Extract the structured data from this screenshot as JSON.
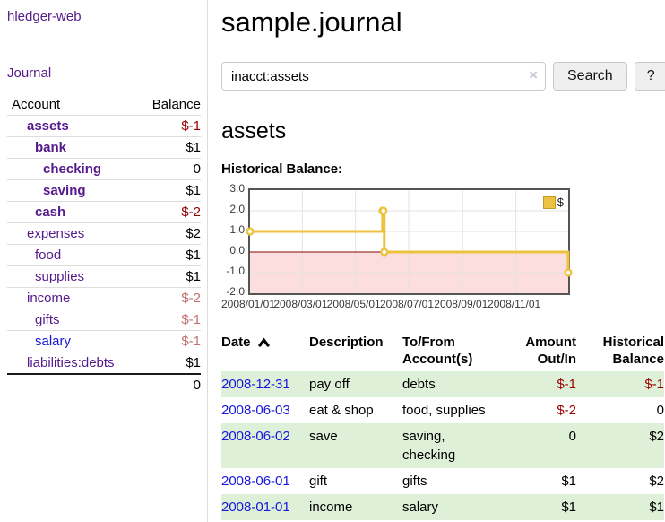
{
  "colors": {
    "purple_link": "#551a8b",
    "blue_link": "#1717dd",
    "negative_strong": "#990000",
    "negative_soft": "#c17373",
    "row_stripe": "#dff0d8",
    "chart_line": "#edc240",
    "chart_negative_fill": "#fcdede",
    "chart_zero_line": "#8b0000",
    "chart_border": "#545454",
    "grid_line": "#e3e3e3"
  },
  "sidebar": {
    "brand": "hledger-web",
    "journal_link": "Journal",
    "accounts_table": {
      "headers": {
        "account": "Account",
        "balance": "Balance"
      },
      "rows": [
        {
          "name": "assets",
          "level": 1,
          "bold": true,
          "balance": "$-1",
          "neg": "strong"
        },
        {
          "name": "bank",
          "level": 2,
          "bold": true,
          "balance": "$1"
        },
        {
          "name": "checking",
          "level": 3,
          "bold": true,
          "balance": "0"
        },
        {
          "name": "saving",
          "level": 3,
          "bold": true,
          "balance": "$1"
        },
        {
          "name": "cash",
          "level": 2,
          "bold": true,
          "balance": "$-2",
          "neg": "strong"
        },
        {
          "name": "expenses",
          "level": 1,
          "bold": false,
          "balance": "$2"
        },
        {
          "name": "food",
          "level": 2,
          "bold": false,
          "balance": "$1"
        },
        {
          "name": "supplies",
          "level": 2,
          "bold": false,
          "balance": "$1"
        },
        {
          "name": "income",
          "level": 1,
          "bold": false,
          "balance": "$-2",
          "neg": "soft"
        },
        {
          "name": "gifts",
          "level": 2,
          "bold": false,
          "balance": "$-1",
          "neg": "soft"
        },
        {
          "name": "salary",
          "level": 2,
          "bold": false,
          "balance": "$-1",
          "neg": "soft",
          "unvisited": true
        },
        {
          "name": "liabilities:debts",
          "level": 1,
          "bold": false,
          "balance": "$1"
        }
      ],
      "total": "0"
    }
  },
  "header": {
    "title": "sample.journal"
  },
  "search": {
    "value": "inacct:assets",
    "clear_icon": "×",
    "button_label": "Search",
    "help_label": "?"
  },
  "account_page": {
    "title": "assets",
    "chart_label": "Historical Balance:"
  },
  "chart_data": {
    "type": "line",
    "steps": true,
    "legend": "$",
    "legend_position": "top-right",
    "x_range": [
      "2008-01-01",
      "2008-12-31"
    ],
    "ylim": [
      -2,
      3
    ],
    "y_ticks": [
      3.0,
      2.0,
      1.0,
      0.0,
      -1.0,
      -2.0
    ],
    "x_tick_labels": [
      "2008/01/01",
      "2008/03/01",
      "2008/05/01",
      "2008/07/01",
      "2008/09/01",
      "2008/11/01"
    ],
    "series": [
      {
        "name": "$",
        "points": [
          {
            "date": "2008-01-01",
            "value": 1
          },
          {
            "date": "2008-06-01",
            "value": 2
          },
          {
            "date": "2008-06-02",
            "value": 2
          },
          {
            "date": "2008-06-03",
            "value": 0
          },
          {
            "date": "2008-12-31",
            "value": -1
          }
        ]
      }
    ],
    "negative_region_shaded": true
  },
  "transactions": {
    "headers": [
      {
        "label": "Date",
        "sub": "",
        "align": "left",
        "sortable": true
      },
      {
        "label": "Description",
        "sub": "",
        "align": "left"
      },
      {
        "label": "To/From",
        "sub": "Account(s)",
        "align": "left"
      },
      {
        "label": "Amount",
        "sub": "Out/In",
        "align": "right"
      },
      {
        "label": "Historical",
        "sub": "Balance",
        "align": "right"
      }
    ],
    "rows": [
      {
        "date": "2008-12-31",
        "description": "pay off",
        "accounts": "debts",
        "amount": "$-1",
        "balance": "$-1",
        "amount_negative": true,
        "balance_negative": true
      },
      {
        "date": "2008-06-03",
        "description": "eat & shop",
        "accounts": "food, supplies",
        "amount": "$-2",
        "balance": "0",
        "amount_negative": true,
        "balance_negative": false
      },
      {
        "date": "2008-06-02",
        "description": "save",
        "accounts": "saving, checking",
        "amount": "0",
        "balance": "$2",
        "amount_negative": false,
        "balance_negative": false
      },
      {
        "date": "2008-06-01",
        "description": "gift",
        "accounts": "gifts",
        "amount": "$1",
        "balance": "$2",
        "amount_negative": false,
        "balance_negative": false
      },
      {
        "date": "2008-01-01",
        "description": "income",
        "accounts": "salary",
        "amount": "$1",
        "balance": "$1",
        "amount_negative": false,
        "balance_negative": false
      }
    ]
  }
}
